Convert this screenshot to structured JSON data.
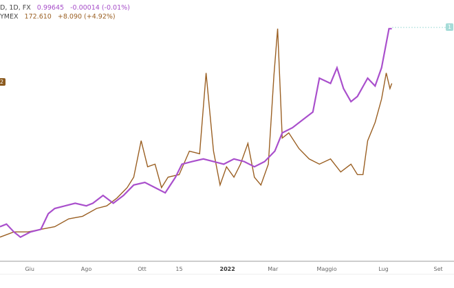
{
  "legend": [
    {
      "name": "D, 1D, FX",
      "value": "0.99645",
      "change": "-0.00014 (-0.01%)"
    },
    {
      "name": "YMEX",
      "value": "172.610",
      "change": "+8.090 (+4.92%)"
    }
  ],
  "tags": {
    "right": "1",
    "left": "2"
  },
  "colors": {
    "series1": "#a94fcc",
    "series2": "#9a5f22",
    "tag_right": "#a6dcd8",
    "tag_left": "#8b5a1e"
  },
  "chart_data": {
    "type": "line",
    "title": "",
    "xlabel": "",
    "ylabel": "",
    "x_unit": "days since 2021-05-01",
    "xlim": [
      0,
      489
    ],
    "ylim": [
      0,
      100
    ],
    "grid": false,
    "x_ticks": [
      {
        "day": 32,
        "label": "Giu"
      },
      {
        "day": 93,
        "label": "Ago"
      },
      {
        "day": 153,
        "label": "Ott"
      },
      {
        "day": 193,
        "label": "15"
      },
      {
        "day": 245,
        "label": "2022",
        "bold": true
      },
      {
        "day": 294,
        "label": "Mar"
      },
      {
        "day": 352,
        "label": "Maggio"
      },
      {
        "day": 413,
        "label": "Lug"
      },
      {
        "day": 472,
        "label": "Set"
      }
    ],
    "series": [
      {
        "name": "D, 1D, FX",
        "x": [
          0,
          7,
          15,
          22,
          33,
          44,
          52,
          59,
          70,
          81,
          93,
          100,
          111,
          122,
          133,
          144,
          156,
          167,
          178,
          189,
          196,
          207,
          219,
          230,
          241,
          252,
          263,
          274,
          285,
          296,
          304,
          315,
          326,
          337,
          344,
          356,
          363,
          370,
          378,
          385,
          396,
          404,
          411,
          419,
          422
        ],
        "values": [
          13,
          14,
          11,
          9,
          11,
          12,
          18,
          20,
          21,
          22,
          21,
          22,
          25,
          22,
          25,
          29,
          30,
          28,
          26,
          32,
          37,
          38,
          39,
          38,
          37,
          39,
          38,
          36,
          38,
          42,
          49,
          51,
          54,
          57,
          70,
          68,
          74,
          66,
          61,
          63,
          70,
          67,
          74,
          89,
          89
        ]
      },
      {
        "name": "YMEX",
        "x": [
          0,
          15,
          30,
          44,
          59,
          74,
          89,
          104,
          115,
          126,
          137,
          144,
          152,
          159,
          167,
          174,
          181,
          193,
          204,
          215,
          222,
          230,
          237,
          244,
          252,
          259,
          267,
          274,
          281,
          289,
          295,
          299,
          304,
          311,
          322,
          333,
          344,
          356,
          367,
          378,
          385,
          391,
          396,
          404,
          411,
          416,
          420,
          422
        ],
        "values": [
          9,
          11,
          11,
          12,
          13,
          16,
          17,
          20,
          21,
          24,
          28,
          32,
          46,
          36,
          37,
          28,
          32,
          33,
          42,
          41,
          72,
          42,
          29,
          36,
          32,
          37,
          45,
          32,
          29,
          37,
          71,
          89,
          47,
          49,
          43,
          39,
          37,
          39,
          34,
          37,
          33,
          33,
          46,
          53,
          62,
          72,
          66,
          68
        ]
      }
    ]
  }
}
